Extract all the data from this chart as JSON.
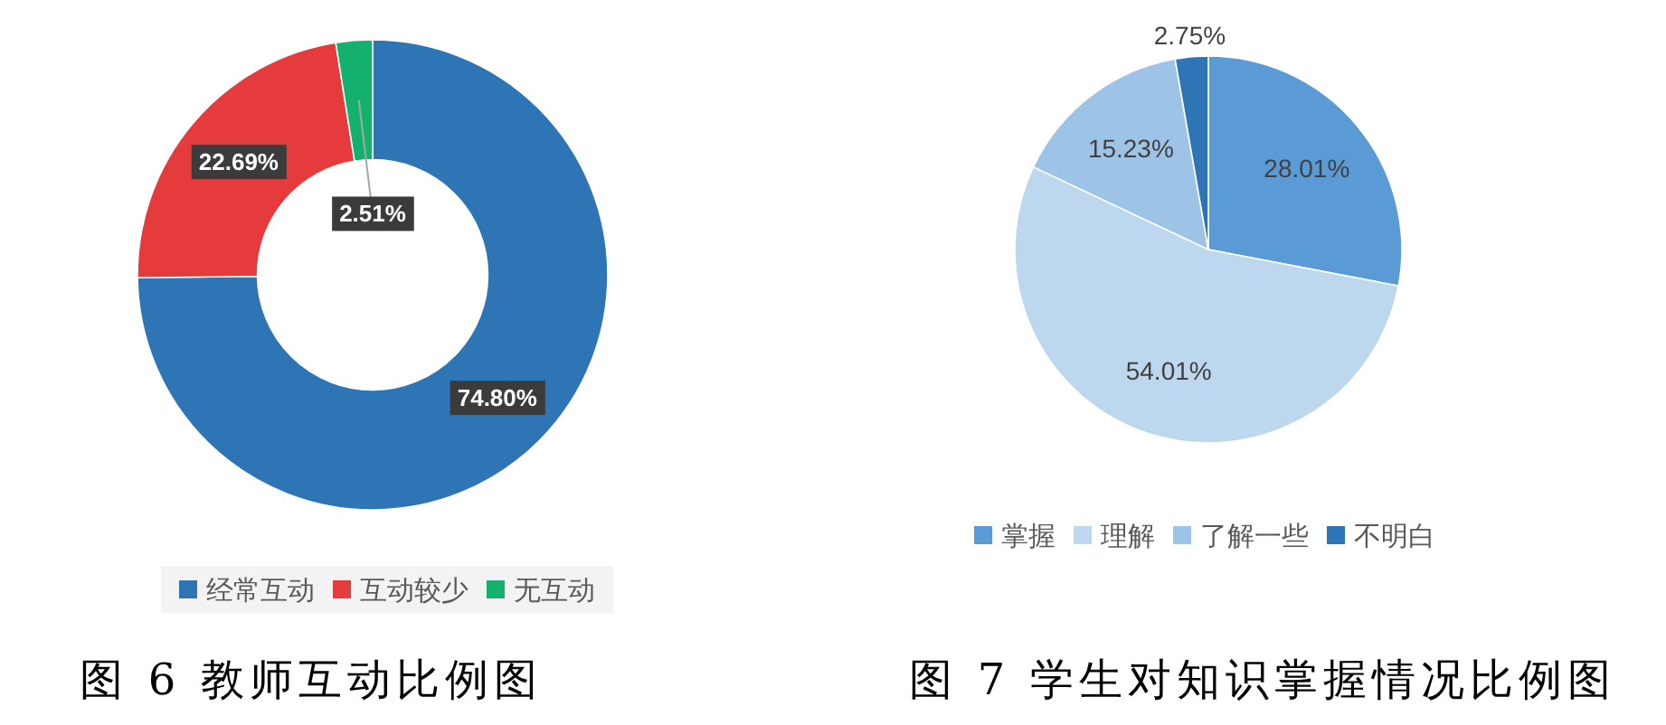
{
  "chart_data": [
    {
      "type": "donut",
      "categories": [
        "经常互动",
        "互动较少",
        "无互动"
      ],
      "values": [
        74.8,
        22.69,
        2.51
      ],
      "colors": [
        "#2e75b6",
        "#e63b3d",
        "#13b16d"
      ],
      "value_labels": [
        "74.80%",
        "22.69%",
        "2.51%"
      ],
      "legend": "bottom",
      "annotations": [
        "图 6 教师互动比例图"
      ]
    },
    {
      "type": "pie",
      "categories": [
        "掌握",
        "理解",
        "了解一些",
        "不明白"
      ],
      "values": [
        28.01,
        54.01,
        15.23,
        2.75
      ],
      "colors": [
        "#5b9bd5",
        "#bdd7ee",
        "#9dc3e6",
        "#2e75b6"
      ],
      "value_labels": [
        "28.01%",
        "54.01%",
        "15.23%",
        "2.75%"
      ],
      "legend": "bottom",
      "annotations": [
        "图 7 学生对知识掌握情况比例图"
      ]
    }
  ]
}
